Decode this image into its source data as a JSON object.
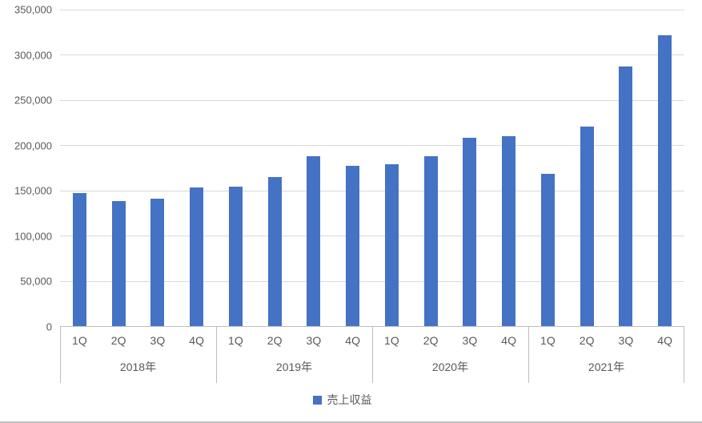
{
  "chart_data": {
    "type": "bar",
    "title": "",
    "legend": [
      "売上収益"
    ],
    "legend_position": "bottom",
    "bar_color": "#4472C4",
    "grid": true,
    "ylim": [
      0,
      350000
    ],
    "ytick_step": 50000,
    "ytick_labels": [
      "0",
      "50,000",
      "100,000",
      "150,000",
      "200,000",
      "250,000",
      "300,000",
      "350,000"
    ],
    "quarter_labels": [
      "1Q",
      "2Q",
      "3Q",
      "4Q"
    ],
    "group_labels": [
      "2018年",
      "2019年",
      "2020年",
      "2021年"
    ],
    "categories": [
      "2018-1Q",
      "2018-2Q",
      "2018-3Q",
      "2018-4Q",
      "2019-1Q",
      "2019-2Q",
      "2019-3Q",
      "2019-4Q",
      "2020-1Q",
      "2020-2Q",
      "2020-3Q",
      "2020-4Q",
      "2021-1Q",
      "2021-2Q",
      "2021-3Q",
      "2021-4Q"
    ],
    "values": [
      147000,
      138000,
      141000,
      153000,
      154000,
      165000,
      188000,
      177000,
      179000,
      188000,
      208000,
      210000,
      168000,
      221000,
      287000,
      322000
    ]
  }
}
